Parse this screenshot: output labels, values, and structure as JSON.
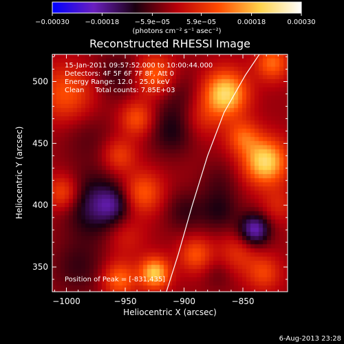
{
  "chart_data": {
    "type": "heatmap",
    "title": "Reconstructed RHESSI Image",
    "xlabel": "Heliocentric X (arcsec)",
    "ylabel": "Heliocentric Y (arcsec)",
    "xlim": [
      -1012,
      -812
    ],
    "ylim": [
      330,
      522
    ],
    "x_ticks": [
      {
        "value": -1000,
        "label": "−1000"
      },
      {
        "value": -950,
        "label": "−950"
      },
      {
        "value": -900,
        "label": "−900"
      },
      {
        "value": -850,
        "label": "−850"
      }
    ],
    "y_ticks": [
      {
        "value": 350,
        "label": "350"
      },
      {
        "value": 400,
        "label": "400"
      },
      {
        "value": 450,
        "label": "450"
      },
      {
        "value": 500,
        "label": "500"
      }
    ],
    "colorbar": {
      "range": [
        -0.0003,
        0.0003
      ],
      "ticks": [
        {
          "value": -0.0003,
          "label": "−0.00030"
        },
        {
          "value": -0.00018,
          "label": "−0.00018"
        },
        {
          "value": -5.9e-05,
          "label": "−5.9e−05"
        },
        {
          "value": 5.9e-05,
          "label": "5.9e−05"
        },
        {
          "value": 0.00018,
          "label": "0.00018"
        },
        {
          "value": 0.0003,
          "label": "0.00030"
        }
      ],
      "unit": "(photons cm⁻² s⁻¹ asec⁻²)",
      "stops": [
        "#0000ff",
        "#6a1fbf",
        "#1a0010",
        "#b8000a",
        "#ff4b00",
        "#ffd24a",
        "#ffffff"
      ]
    },
    "annotations": [
      "15-Jan-2011 09:57:52.000 to 10:00:44.000",
      "Detectors: 4F 5F 6F 7F 8F, Att 0",
      "Energy Range: 12.0 - 25.0 keV",
      "Clean     Total counts: 7.85E+03"
    ],
    "peak_label": "Position of Peak = [-831,435]",
    "limb": [
      [
        -915,
        330
      ],
      [
        -905,
        360
      ],
      [
        -893,
        400
      ],
      [
        -880,
        440
      ],
      [
        -866,
        475
      ],
      [
        -848,
        505
      ],
      [
        -836,
        522
      ]
    ],
    "blobs": [
      {
        "x": -1000,
        "y": 490,
        "a": 0.00012,
        "s": 16
      },
      {
        "x": -982,
        "y": 455,
        "a": -4e-05,
        "s": 16
      },
      {
        "x": -975,
        "y": 400,
        "a": -0.00012,
        "s": 18
      },
      {
        "x": -1003,
        "y": 410,
        "a": 0.00012,
        "s": 10
      },
      {
        "x": -990,
        "y": 350,
        "a": -6e-05,
        "s": 16
      },
      {
        "x": -955,
        "y": 505,
        "a": -6e-05,
        "s": 14
      },
      {
        "x": -925,
        "y": 505,
        "a": 0.00014,
        "s": 12
      },
      {
        "x": -940,
        "y": 470,
        "a": 0.00012,
        "s": 10
      },
      {
        "x": -955,
        "y": 440,
        "a": 0.0001,
        "s": 10
      },
      {
        "x": -935,
        "y": 410,
        "a": 0.00013,
        "s": 12
      },
      {
        "x": -950,
        "y": 375,
        "a": 6e-05,
        "s": 12
      },
      {
        "x": -925,
        "y": 345,
        "a": 0.00022,
        "s": 9
      },
      {
        "x": -955,
        "y": 340,
        "a": 0.00014,
        "s": 10
      },
      {
        "x": -960,
        "y": 400,
        "a": -8e-05,
        "s": 10
      },
      {
        "x": -905,
        "y": 490,
        "a": -5e-05,
        "s": 14
      },
      {
        "x": -910,
        "y": 460,
        "a": -8e-05,
        "s": 14
      },
      {
        "x": -885,
        "y": 470,
        "a": 6e-05,
        "s": 12
      },
      {
        "x": -900,
        "y": 395,
        "a": -6e-05,
        "s": 12
      },
      {
        "x": -890,
        "y": 360,
        "a": 0.00012,
        "s": 10
      },
      {
        "x": -865,
        "y": 490,
        "a": 0.00024,
        "s": 13
      },
      {
        "x": -825,
        "y": 515,
        "a": 0.00014,
        "s": 10
      },
      {
        "x": -850,
        "y": 455,
        "a": 0.00012,
        "s": 10
      },
      {
        "x": -831,
        "y": 435,
        "a": 0.00024,
        "s": 13
      },
      {
        "x": -870,
        "y": 420,
        "a": -4e-05,
        "s": 12
      },
      {
        "x": -870,
        "y": 395,
        "a": -7e-05,
        "s": 12
      },
      {
        "x": -840,
        "y": 380,
        "a": -0.00018,
        "s": 9
      },
      {
        "x": -855,
        "y": 360,
        "a": 8e-05,
        "s": 12
      },
      {
        "x": -832,
        "y": 345,
        "a": 0.0001,
        "s": 10
      },
      {
        "x": -870,
        "y": 345,
        "a": -4e-05,
        "s": 10
      },
      {
        "x": -820,
        "y": 400,
        "a": 6e-05,
        "s": 10
      }
    ]
  },
  "footer": {
    "date": "6-Aug-2013 23:28"
  }
}
